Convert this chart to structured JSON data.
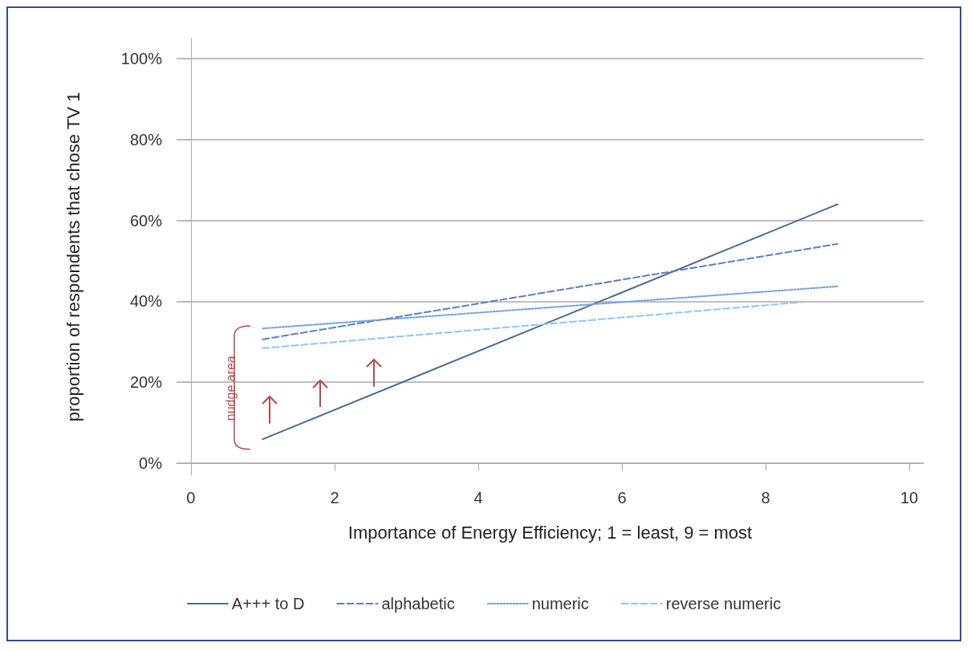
{
  "chart_data": {
    "type": "line",
    "xlabel": "Importance of Energy Efficiency; 1 = least, 9 = most",
    "ylabel": "proportion of respondents that chose TV 1",
    "series": [
      {
        "name": "A+++ to D",
        "color": "#4a6a9a",
        "x": [
          1,
          9
        ],
        "values": [
          5.9,
          64
        ],
        "line_style": "solid"
      },
      {
        "name": "alphabetic",
        "color": "#5b80b8",
        "x": [
          1,
          9
        ],
        "values": [
          30.6,
          54.2
        ],
        "line_style": "dashed"
      },
      {
        "name": "numeric",
        "color": "#6f9ee0",
        "x": [
          1,
          9
        ],
        "values": [
          33.3,
          43.7
        ],
        "line_style": "dotted"
      },
      {
        "name": "reverse numeric",
        "color": "#8ec4f5",
        "x": [
          1,
          8.5
        ],
        "values": [
          28.4,
          39.8
        ],
        "line_style": "dashed"
      }
    ],
    "xlim": [
      -0.2,
      10.2
    ],
    "xticks": [
      0,
      2,
      4,
      6,
      8,
      10
    ],
    "ylim": [
      -3,
      105
    ],
    "yticks": [
      {
        "value": 0,
        "label": "0%"
      },
      {
        "value": 20,
        "label": "20%"
      },
      {
        "value": 40,
        "label": "40%"
      },
      {
        "value": 60,
        "label": "60%"
      },
      {
        "value": 80,
        "label": "80%"
      },
      {
        "value": 100,
        "label": "100%"
      }
    ],
    "grid": "y",
    "legend": "bottom",
    "marker": "none",
    "annotations": [
      "nudge area"
    ]
  }
}
